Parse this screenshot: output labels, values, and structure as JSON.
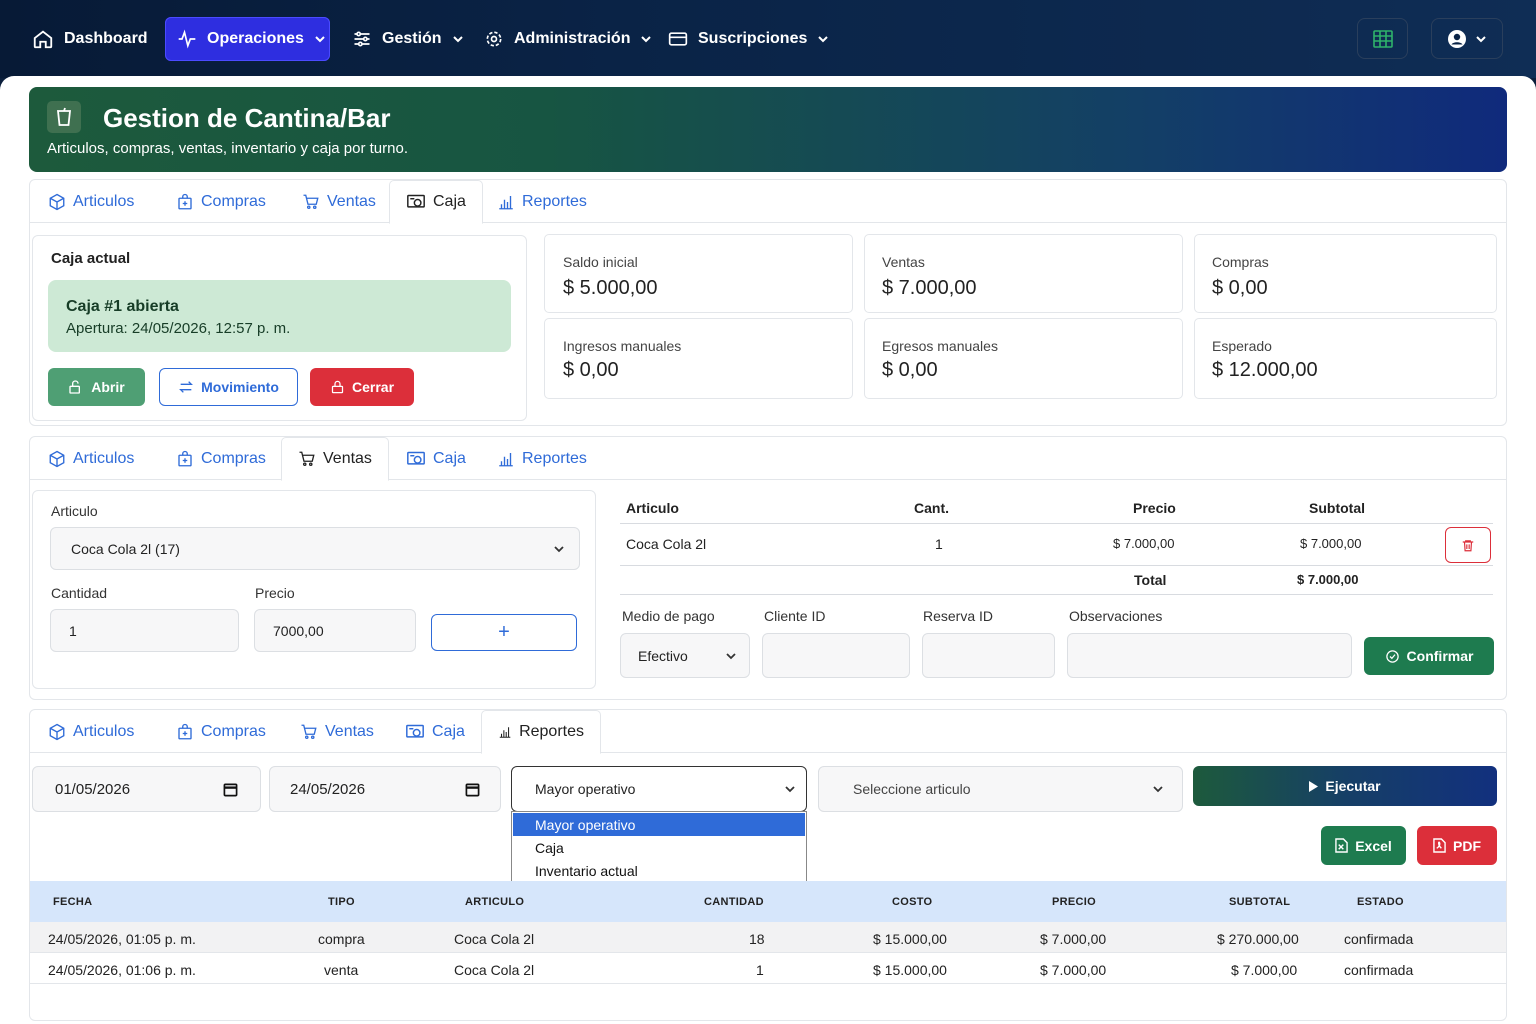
{
  "nav": {
    "dashboard": "Dashboard",
    "operaciones": "Operaciones",
    "gestion": "Gestión",
    "administracion": "Administración",
    "suscripciones": "Suscripciones"
  },
  "header": {
    "title": "Gestion de Cantina/Bar",
    "subtitle": "Articulos, compras, ventas, inventario y caja por turno."
  },
  "tabs": [
    "Articulos",
    "Compras",
    "Ventas",
    "Caja",
    "Reportes"
  ],
  "caja": {
    "title": "Caja actual",
    "status": "Caja #1 abierta",
    "apertura": "Apertura: 24/05/2026, 12:57 p. m.",
    "btn_abrir": "Abrir",
    "btn_movimiento": "Movimiento",
    "btn_cerrar": "Cerrar",
    "stats": [
      {
        "label": "Saldo inicial",
        "value": "$ 5.000,00"
      },
      {
        "label": "Ventas",
        "value": "$ 7.000,00"
      },
      {
        "label": "Compras",
        "value": "$ 0,00"
      },
      {
        "label": "Ingresos manuales",
        "value": "$ 0,00"
      },
      {
        "label": "Egresos manuales",
        "value": "$ 0,00"
      },
      {
        "label": "Esperado",
        "value": "$ 12.000,00"
      }
    ]
  },
  "ventas": {
    "articulo_label": "Articulo",
    "articulo_value": "Coca Cola 2l (17)",
    "cantidad_label": "Cantidad",
    "cantidad_value": "1",
    "precio_label": "Precio",
    "precio_value": "7000,00",
    "add_symbol": "+",
    "table_headers": [
      "Articulo",
      "Cant.",
      "Precio",
      "Subtotal"
    ],
    "rows": [
      {
        "articulo": "Coca Cola 2l",
        "cant": "1",
        "precio": "$ 7.000,00",
        "subtotal": "$ 7.000,00"
      }
    ],
    "total_label": "Total",
    "total_value": "$ 7.000,00",
    "medio_pago_label": "Medio de pago",
    "medio_pago_value": "Efectivo",
    "cliente_label": "Cliente ID",
    "reserva_label": "Reserva ID",
    "observaciones_label": "Observaciones",
    "confirmar": "Confirmar"
  },
  "reportes": {
    "fecha_desde": "01/05/2026",
    "fecha_hasta": "24/05/2026",
    "tipo_selected": "Mayor operativo",
    "tipo_options": [
      "Mayor operativo",
      "Caja",
      "Inventario actual"
    ],
    "articulo_placeholder": "Seleccione articulo",
    "ejecutar": "Ejecutar",
    "excel": "Excel",
    "pdf": "PDF",
    "headers": [
      "FECHA",
      "TIPO",
      "ARTICULO",
      "CANTIDAD",
      "COSTO",
      "PRECIO",
      "SUBTOTAL",
      "ESTADO"
    ],
    "rows": [
      {
        "fecha": "24/05/2026, 01:05 p. m.",
        "tipo": "compra",
        "articulo": "Coca Cola 2l",
        "cantidad": "18",
        "costo": "$ 15.000,00",
        "precio": "$ 7.000,00",
        "subtotal": "$ 270.000,00",
        "estado": "confirmada"
      },
      {
        "fecha": "24/05/2026, 01:06 p. m.",
        "tipo": "venta",
        "articulo": "Coca Cola 2l",
        "cantidad": "1",
        "costo": "$ 15.000,00",
        "precio": "$ 7.000,00",
        "subtotal": "$ 7.000,00",
        "estado": "confirmada"
      }
    ]
  },
  "colors": {
    "nav_active": "#2e2ee0",
    "success": "#1e7b4f",
    "danger": "#dc2f3a",
    "link": "#2f6bd8",
    "status_bg": "#cde9d5",
    "report_header_bg": "#d6e6fb"
  },
  "icons": [
    "home-icon",
    "activity-icon",
    "sliders-icon",
    "gear-icon",
    "card-icon",
    "chevron-down-icon",
    "table-icon",
    "user-circle-icon",
    "box-icon",
    "bag-plus-icon",
    "cart-icon",
    "cash-register-icon",
    "bar-chart-icon",
    "trash-icon",
    "check-circle-icon",
    "play-icon",
    "calendar-icon",
    "file-excel-icon",
    "file-pdf-icon",
    "unlock-icon",
    "lock-icon",
    "swap-icon"
  ]
}
